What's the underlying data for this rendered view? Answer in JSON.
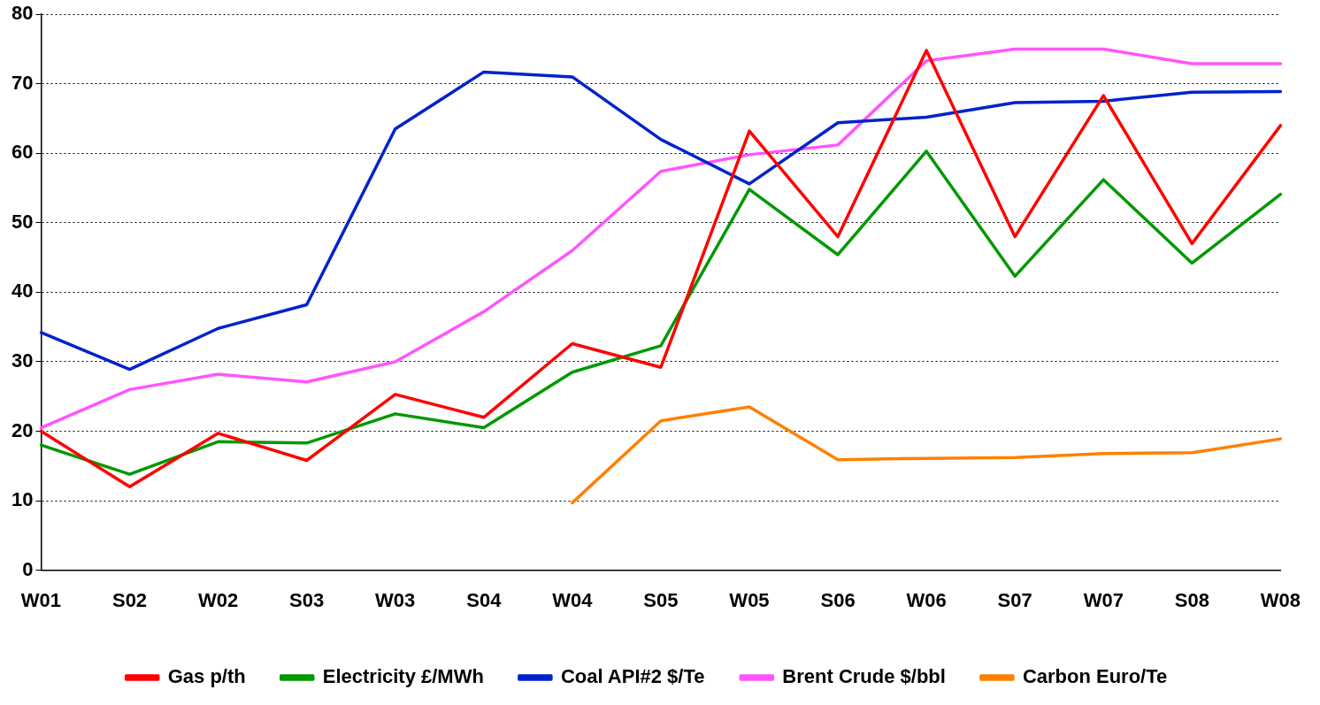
{
  "chart_data": {
    "type": "line",
    "categories": [
      "W01",
      "S02",
      "W02",
      "S03",
      "W03",
      "S04",
      "W04",
      "S05",
      "W05",
      "S06",
      "W06",
      "S07",
      "W07",
      "S08",
      "W08"
    ],
    "series": [
      {
        "name": "Gas p/th",
        "color": "#ff0000",
        "values": [
          20,
          12,
          19.7,
          15.8,
          25.3,
          22,
          32.6,
          29.2,
          63.2,
          48,
          74.8,
          48,
          68.3,
          47,
          64
        ]
      },
      {
        "name": "Electricity £/MWh",
        "color": "#009900",
        "values": [
          18,
          13.8,
          18.5,
          18.3,
          22.5,
          20.5,
          28.5,
          32.3,
          54.8,
          45.4,
          60.3,
          42.3,
          56.2,
          44.2,
          54.1
        ]
      },
      {
        "name": "Coal API#2 $/Te",
        "color": "#0022cc",
        "values": [
          34.2,
          28.9,
          34.8,
          38.2,
          63.5,
          71.7,
          71,
          62,
          55.6,
          64.4,
          65.2,
          67.3,
          67.5,
          68.8,
          68.9
        ]
      },
      {
        "name": "Brent Crude $/bbl",
        "color": "#ff55ff",
        "values": [
          20.5,
          26,
          28.2,
          27.1,
          30,
          37.2,
          46,
          57.4,
          59.8,
          61.2,
          73.3,
          75,
          75,
          72.9,
          72.9
        ]
      },
      {
        "name": "Carbon Euro/Te",
        "color": "#ff8000",
        "values": [
          null,
          null,
          null,
          null,
          null,
          null,
          9.7,
          21.5,
          23.5,
          15.9,
          16.1,
          16.2,
          16.8,
          16.9,
          18.9
        ]
      }
    ],
    "ylim": [
      0,
      80
    ],
    "yticks": [
      0,
      10,
      20,
      30,
      40,
      50,
      60,
      70,
      80
    ],
    "grid": "y",
    "legend": "bottom",
    "marker": "none",
    "line_style": "solid"
  }
}
